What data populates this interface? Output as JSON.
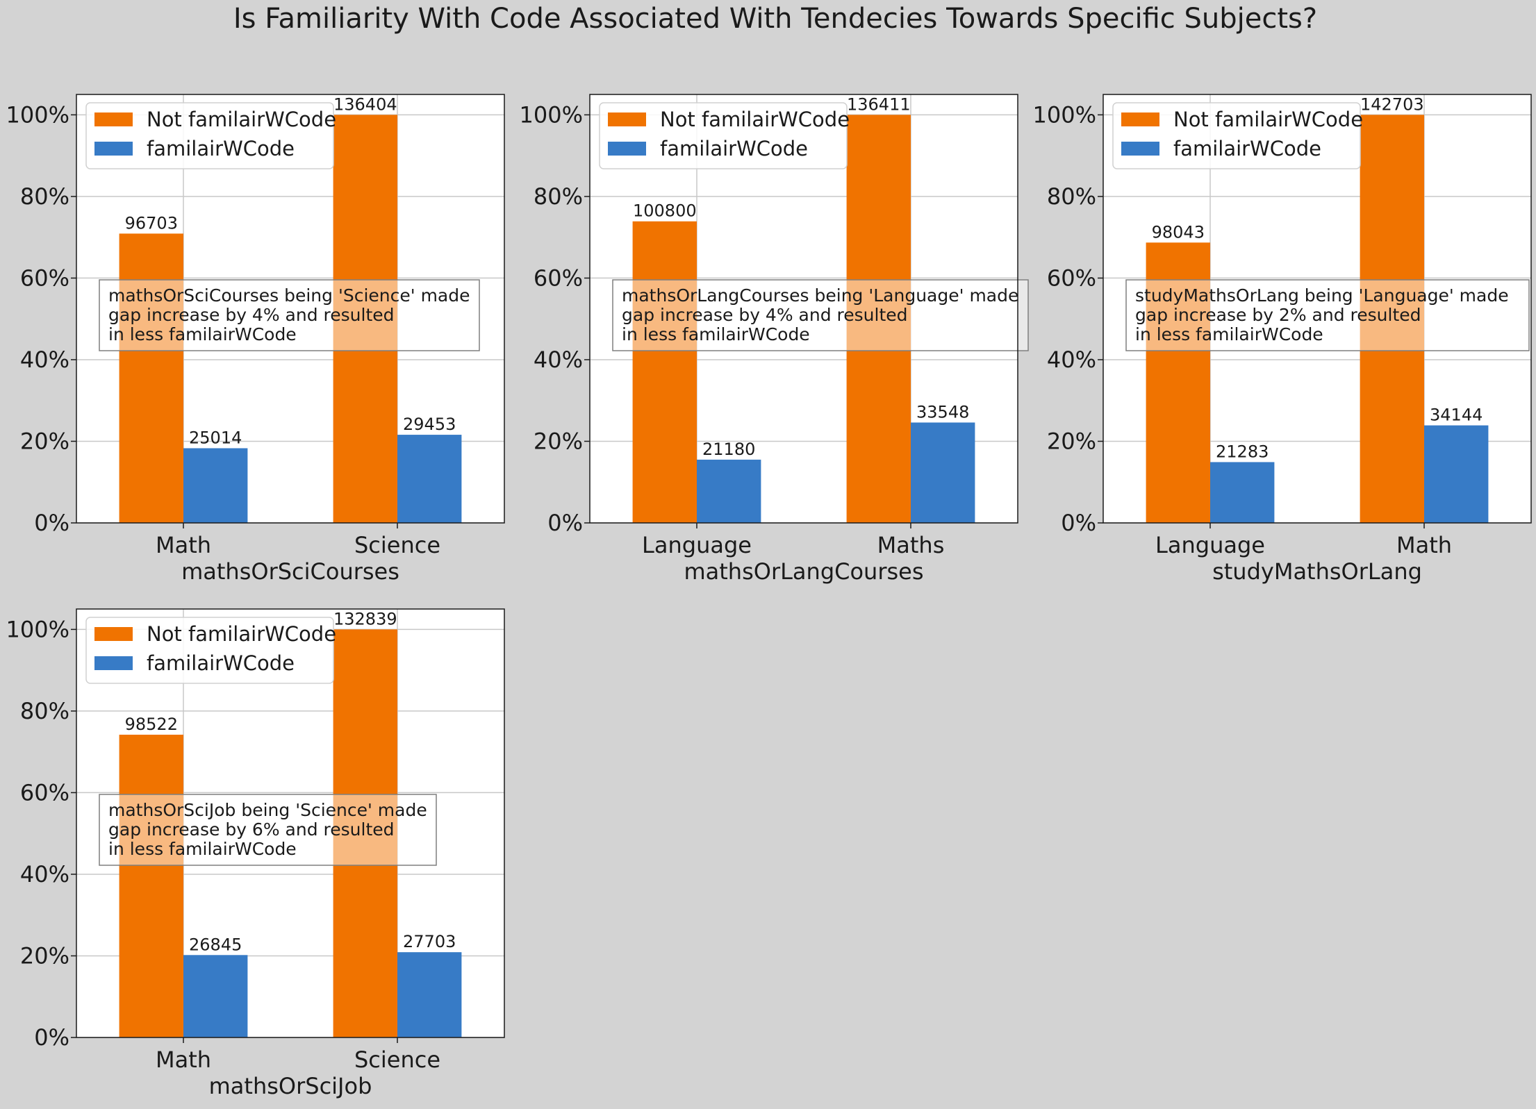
{
  "title": "Is Familiarity With Code Associated With Tendecies Towards Specific Subjects?",
  "colors": {
    "not_familiar": "#f07300",
    "familiar": "#377bc6",
    "figure_bg": "#d3d3d3",
    "grid": "#c8c8c8"
  },
  "chart_data": [
    {
      "type": "bar",
      "categories": [
        "Math",
        "Science"
      ],
      "xlabel": "mathsOrSciCourses",
      "ylim": [
        0,
        105
      ],
      "yticks": [
        "0%",
        "20%",
        "40%",
        "60%",
        "80%",
        "100%"
      ],
      "grid": true,
      "legend_placement": "top-left",
      "series": [
        {
          "name": "Not familairWCode",
          "values": [
            70.9,
            100
          ],
          "labels": [
            "96703",
            "136404"
          ]
        },
        {
          "name": "familairWCode",
          "values": [
            18.3,
            21.6
          ],
          "labels": [
            "25014",
            "29453"
          ]
        }
      ],
      "annotation": [
        "mathsOrSciCourses being 'Science' made",
        "gap increase by 4% and resulted",
        "in less familairWCode"
      ]
    },
    {
      "type": "bar",
      "categories": [
        "Language",
        "Maths"
      ],
      "xlabel": "mathsOrLangCourses",
      "ylim": [
        0,
        105
      ],
      "yticks": [
        "0%",
        "20%",
        "40%",
        "60%",
        "80%",
        "100%"
      ],
      "grid": true,
      "legend_placement": "top-left",
      "series": [
        {
          "name": "Not familairWCode",
          "values": [
            73.9,
            100
          ],
          "labels": [
            "100800",
            "136411"
          ]
        },
        {
          "name": "familairWCode",
          "values": [
            15.5,
            24.6
          ],
          "labels": [
            "21180",
            "33548"
          ]
        }
      ],
      "annotation": [
        "mathsOrLangCourses being 'Language' made",
        "gap increase by 4% and resulted",
        "in less familairWCode"
      ]
    },
    {
      "type": "bar",
      "categories": [
        "Language",
        "Math"
      ],
      "xlabel": "studyMathsOrLang",
      "ylim": [
        0,
        105
      ],
      "yticks": [
        "0%",
        "20%",
        "40%",
        "60%",
        "80%",
        "100%"
      ],
      "grid": true,
      "legend_placement": "top-left",
      "series": [
        {
          "name": "Not familairWCode",
          "values": [
            68.7,
            100
          ],
          "labels": [
            "98043",
            "142703"
          ]
        },
        {
          "name": "familairWCode",
          "values": [
            14.9,
            23.9
          ],
          "labels": [
            "21283",
            "34144"
          ]
        }
      ],
      "annotation": [
        "studyMathsOrLang being 'Language' made",
        "gap increase by 2% and resulted",
        "in less familairWCode"
      ]
    },
    {
      "type": "bar",
      "categories": [
        "Math",
        "Science"
      ],
      "xlabel": "mathsOrSciJob",
      "ylim": [
        0,
        105
      ],
      "yticks": [
        "0%",
        "20%",
        "40%",
        "60%",
        "80%",
        "100%"
      ],
      "grid": true,
      "legend_placement": "top-left",
      "series": [
        {
          "name": "Not familairWCode",
          "values": [
            74.2,
            100
          ],
          "labels": [
            "98522",
            "132839"
          ]
        },
        {
          "name": "familairWCode",
          "values": [
            20.2,
            20.9
          ],
          "labels": [
            "26845",
            "27703"
          ]
        }
      ],
      "annotation": [
        "mathsOrSciJob being 'Science' made",
        "gap increase by 6% and resulted",
        "in less familairWCode"
      ]
    }
  ]
}
